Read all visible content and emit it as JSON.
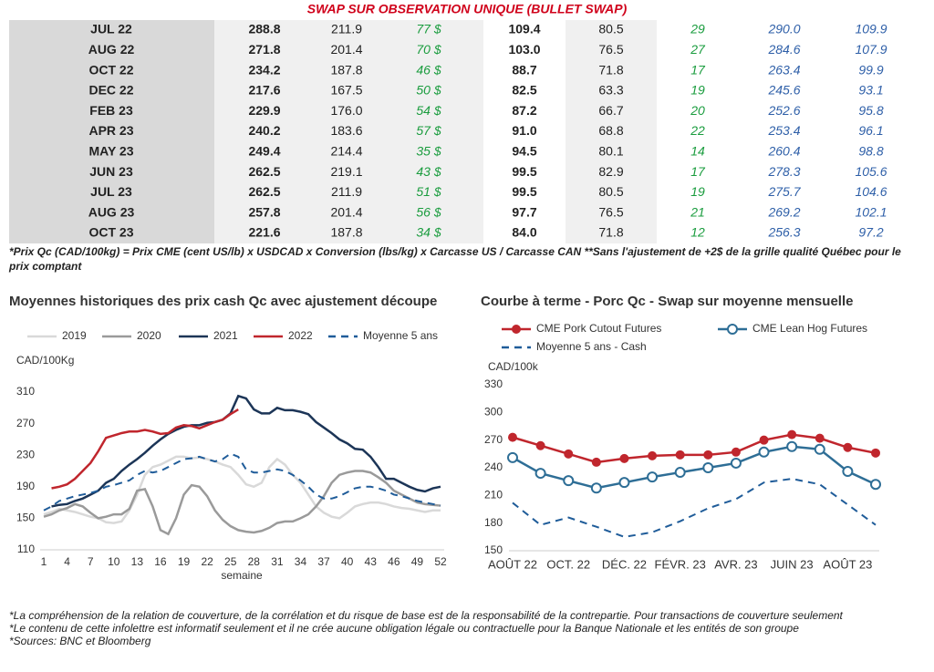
{
  "title": "SWAP SUR OBSERVATION UNIQUE (BULLET SWAP)",
  "table": {
    "rows": [
      [
        "JUL 22",
        "288.8",
        "211.9",
        "77 $",
        "109.4",
        "80.5",
        "29",
        "290.0",
        "109.9"
      ],
      [
        "AUG 22",
        "271.8",
        "201.4",
        "70 $",
        "103.0",
        "76.5",
        "27",
        "284.6",
        "107.9"
      ],
      [
        "OCT 22",
        "234.2",
        "187.8",
        "46 $",
        "88.7",
        "71.8",
        "17",
        "263.4",
        "99.9"
      ],
      [
        "DEC 22",
        "217.6",
        "167.5",
        "50 $",
        "82.5",
        "63.3",
        "19",
        "245.6",
        "93.1"
      ],
      [
        "FEB 23",
        "229.9",
        "176.0",
        "54 $",
        "87.2",
        "66.7",
        "20",
        "252.6",
        "95.8"
      ],
      [
        "APR 23",
        "240.2",
        "183.6",
        "57 $",
        "91.0",
        "68.8",
        "22",
        "253.4",
        "96.1"
      ],
      [
        "MAY 23",
        "249.4",
        "214.4",
        "35 $",
        "94.5",
        "80.1",
        "14",
        "260.4",
        "98.8"
      ],
      [
        "JUN 23",
        "262.5",
        "219.1",
        "43 $",
        "99.5",
        "82.9",
        "17",
        "278.3",
        "105.6"
      ],
      [
        "JUL 23",
        "262.5",
        "211.9",
        "51 $",
        "99.5",
        "80.5",
        "19",
        "275.7",
        "104.6"
      ],
      [
        "AUG 23",
        "257.8",
        "201.4",
        "56 $",
        "97.7",
        "76.5",
        "21",
        "269.2",
        "102.1"
      ],
      [
        "OCT 23",
        "221.6",
        "187.8",
        "34 $",
        "84.0",
        "71.8",
        "12",
        "256.3",
        "97.2"
      ]
    ]
  },
  "footnote": "*Prix Qc (CAD/100kg) = Prix CME (cent US/lb) x USDCAD x Conversion (lbs/kg) x Carcasse US / Carcasse CAN **Sans l'ajustement de +2$ de la grille qualité Québec pour le prix comptant",
  "chart_data": [
    {
      "type": "line",
      "title": "Moyennes historiques des prix cash Qc avec ajustement découpe",
      "ylabel": "CAD/100Kg",
      "xlabel": "semaine",
      "x": [
        1,
        2,
        3,
        4,
        5,
        6,
        7,
        8,
        9,
        10,
        11,
        12,
        13,
        14,
        15,
        16,
        17,
        18,
        19,
        20,
        21,
        22,
        23,
        24,
        25,
        26,
        27,
        28,
        29,
        30,
        31,
        32,
        33,
        34,
        35,
        36,
        37,
        38,
        39,
        40,
        41,
        42,
        43,
        44,
        45,
        46,
        47,
        48,
        49,
        50,
        51,
        52
      ],
      "xlim": [
        1,
        52
      ],
      "xticks": [
        1,
        4,
        7,
        10,
        13,
        16,
        19,
        22,
        25,
        28,
        31,
        34,
        37,
        40,
        43,
        46,
        49,
        52
      ],
      "ylim": [
        110,
        310
      ],
      "yticks": [
        110,
        150,
        190,
        230,
        270,
        310
      ],
      "series": [
        {
          "name": "2019",
          "color": "#d9d9d9",
          "values": [
            155,
            158,
            162,
            160,
            158,
            155,
            152,
            150,
            145,
            144,
            146,
            160,
            180,
            205,
            215,
            218,
            223,
            228,
            228,
            226,
            227,
            225,
            222,
            218,
            215,
            205,
            193,
            190,
            195,
            215,
            225,
            218,
            205,
            195,
            180,
            165,
            157,
            152,
            150,
            157,
            165,
            168,
            170,
            170,
            168,
            165,
            163,
            162,
            160,
            158,
            160,
            160
          ]
        },
        {
          "name": "2020",
          "color": "#9a9a9a",
          "values": [
            152,
            155,
            160,
            163,
            168,
            165,
            157,
            150,
            152,
            155,
            155,
            162,
            185,
            187,
            165,
            135,
            130,
            150,
            180,
            192,
            190,
            178,
            160,
            148,
            140,
            135,
            133,
            132,
            134,
            138,
            144,
            146,
            146,
            150,
            155,
            165,
            178,
            195,
            205,
            208,
            210,
            210,
            208,
            202,
            195,
            185,
            180,
            175,
            170,
            168,
            167,
            166
          ]
        },
        {
          "name": "2021",
          "color": "#1c3557",
          "values": [
            null,
            165,
            167,
            168,
            172,
            175,
            180,
            185,
            195,
            200,
            210,
            218,
            225,
            233,
            242,
            250,
            257,
            262,
            266,
            268,
            268,
            271,
            272,
            275,
            283,
            305,
            302,
            288,
            283,
            283,
            290,
            287,
            287,
            285,
            282,
            272,
            265,
            258,
            250,
            245,
            238,
            237,
            228,
            215,
            200,
            200,
            195,
            190,
            186,
            184,
            188,
            190
          ]
        },
        {
          "name": "2022",
          "color": "#c0262d",
          "values": [
            null,
            188,
            190,
            193,
            200,
            210,
            220,
            235,
            252,
            255,
            258,
            260,
            260,
            262,
            260,
            257,
            258,
            265,
            268,
            267,
            264,
            268,
            272,
            275,
            282,
            288,
            null,
            null,
            null,
            null,
            null,
            null,
            null,
            null,
            null,
            null,
            null,
            null,
            null,
            null,
            null,
            null,
            null,
            null,
            null,
            null,
            null,
            null,
            null,
            null,
            null,
            null
          ]
        },
        {
          "name": "Moyenne 5 ans",
          "color": "#1f5c99",
          "dash": true,
          "values": [
            160,
            165,
            172,
            175,
            178,
            180,
            182,
            185,
            190,
            192,
            195,
            198,
            205,
            210,
            208,
            210,
            215,
            220,
            225,
            226,
            228,
            225,
            222,
            225,
            232,
            228,
            212,
            208,
            208,
            210,
            212,
            210,
            205,
            198,
            190,
            180,
            175,
            175,
            178,
            183,
            188,
            190,
            190,
            188,
            185,
            180,
            178,
            175,
            172,
            170,
            168,
            166
          ]
        }
      ]
    },
    {
      "type": "line",
      "title": "Courbe à terme - Porc Qc - Swap sur moyenne mensuelle",
      "ylabel": "CAD/100k",
      "categories": [
        "AOÛT 22",
        null,
        "OCT. 22",
        null,
        "DÉC. 22",
        null,
        "FÉVR. 23",
        null,
        "AVR. 23",
        null,
        "JUIN 23",
        null,
        "AOÛT 23",
        null
      ],
      "ylim": [
        150,
        330
      ],
      "yticks": [
        150,
        180,
        210,
        240,
        270,
        300,
        330
      ],
      "series": [
        {
          "name": "CME Pork Cutout Futures",
          "color": "#c0262d",
          "marker": "filled",
          "values": [
            273,
            264,
            255,
            246,
            250,
            253,
            254,
            254,
            257,
            270,
            276,
            272,
            262,
            256
          ]
        },
        {
          "name": "CME Lean Hog Futures",
          "color": "#2e6e96",
          "marker": "open",
          "values": [
            251,
            234,
            226,
            218,
            224,
            230,
            235,
            240,
            245,
            257,
            263,
            260,
            236,
            222
          ]
        },
        {
          "name": "Moyenne 5 ans - Cash",
          "color": "#1f5c99",
          "dash": true,
          "values": [
            202,
            178,
            186,
            176,
            165,
            170,
            182,
            196,
            206,
            224,
            228,
            222,
            200,
            178
          ]
        }
      ]
    }
  ],
  "notes": [
    "*La compréhension de la relation de couverture, de la corrélation et du risque de base est de la responsabilité de la contrepartie. Pour transactions de couverture seulement",
    "*Le contenu de cette infolettre est informatif seulement et il ne crée aucune obligation légale ou contractuelle pour la Banque Nationale et les entités de son groupe",
    "*Sources: BNC et Bloomberg"
  ]
}
